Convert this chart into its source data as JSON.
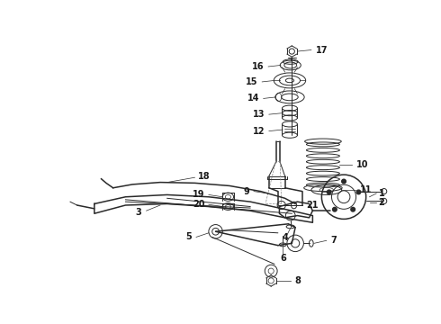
{
  "bg_color": "#ffffff",
  "line_color": "#2a2a2a",
  "label_color": "#1a1a1a",
  "label_fontsize": 7.0,
  "fig_width": 4.9,
  "fig_height": 3.6,
  "dpi": 100
}
